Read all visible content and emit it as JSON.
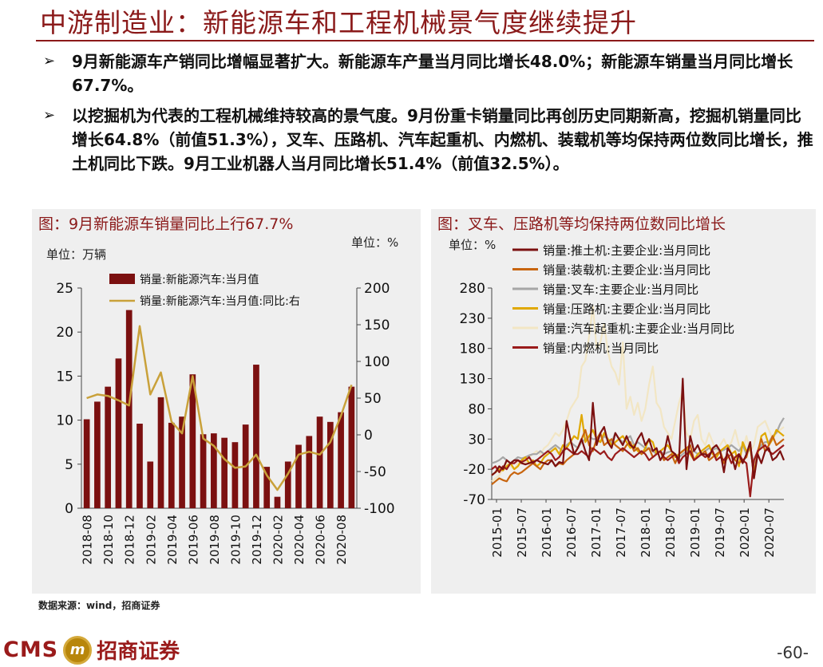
{
  "title": "中游制造业：新能源车和工程机械景气度继续提升",
  "bullets": [
    "9月新能源车产销同比增幅显著扩大。新能源车产量当月同比增长48.0%；新能源车销量当月同比增长67.7%。",
    "以挖掘机为代表的工程机械维持较高的景气度。9月份重卡销量同比再创历史同期新高，挖掘机销量同比增长64.8%（前值51.3%），叉车、压路机、汽车起重机、内燃机、装载机等均保持两位数同比增长，推土机同比下跌。9月工业机器人当月同比增长51.4%（前值32.5%）。"
  ],
  "bullet_marker": "➢",
  "source": "数据来源：wind，招商证券",
  "logo": {
    "cms": "CMS",
    "badge": "m",
    "cn": "招商证券"
  },
  "page_number": "-60-",
  "colors": {
    "brand": "#8b1a1a",
    "bar": "#7b1010",
    "line_gold": "#c9a13a"
  },
  "chart_data": [
    {
      "type": "bar",
      "title": "图：9月新能源车销量同比上行67.7%",
      "unit_left": "单位：万辆",
      "unit_right": "单位：%",
      "categories": [
        "2018-08",
        "2018-09",
        "2018-10",
        "2018-11",
        "2018-12",
        "2019-01",
        "2019-02",
        "2019-03",
        "2019-04",
        "2019-05",
        "2019-06",
        "2019-07",
        "2019-08",
        "2019-09",
        "2019-10",
        "2019-11",
        "2019-12",
        "2020-01",
        "2020-02",
        "2020-03",
        "2020-04",
        "2020-05",
        "2020-06",
        "2020-07",
        "2020-08",
        "2020-09"
      ],
      "xtick_labels": [
        "2018-08",
        "2018-10",
        "2018-12",
        "2019-02",
        "2019-04",
        "2019-06",
        "2019-08",
        "2019-10",
        "2019-12",
        "2020-02",
        "2020-04",
        "2020-06",
        "2020-08"
      ],
      "series": [
        {
          "name": "销量:新能源汽车:当月值",
          "type": "bar",
          "axis": "left",
          "values": [
            10.1,
            12.1,
            13.8,
            17.0,
            22.5,
            9.6,
            5.3,
            12.6,
            9.7,
            10.4,
            15.2,
            8.4,
            8.5,
            8.0,
            7.5,
            9.5,
            16.3,
            4.7,
            1.3,
            5.3,
            7.2,
            8.2,
            10.4,
            9.8,
            10.9,
            13.8
          ]
        },
        {
          "name": "销量:新能源汽车:当月值:同比:右",
          "type": "line",
          "axis": "right",
          "values": [
            50,
            55,
            53,
            47,
            40,
            148,
            55,
            85,
            18,
            2,
            80,
            -5,
            -15,
            -33,
            -45,
            -43,
            -27,
            -55,
            -75,
            -53,
            -27,
            -23,
            -27,
            -10,
            26,
            68
          ]
        }
      ],
      "ylim_left": [
        0,
        25
      ],
      "ylim_right": [
        -100,
        200
      ],
      "yticks_left": [
        0,
        5,
        10,
        15,
        20,
        25
      ],
      "yticks_right": [
        -100,
        -50,
        0,
        50,
        100,
        150,
        200
      ],
      "legend": "top"
    },
    {
      "type": "line",
      "title": "图：叉车、压路机等均保持两位数同比增长",
      "unit_left": "单位：%",
      "xtick_labels": [
        "2015-01",
        "2015-07",
        "2016-01",
        "2016-07",
        "2017-01",
        "2017-07",
        "2018-01",
        "2018-07",
        "2019-01",
        "2019-07",
        "2020-01",
        "2020-07"
      ],
      "ylim": [
        -70,
        280
      ],
      "yticks": [
        -70,
        -20,
        30,
        80,
        130,
        180,
        230,
        280
      ],
      "series": [
        {
          "name": "销量:推土机:主要企业:当月同比",
          "color": "#7b1010",
          "values": [
            -30,
            -25,
            -15,
            -20,
            -5,
            -10,
            -5,
            -5,
            -10,
            -12,
            -10,
            -8,
            -5,
            -8,
            -10,
            -12,
            -5,
            -15,
            -8,
            -10,
            60,
            30,
            5,
            15,
            30,
            10,
            -5,
            90,
            20,
            40,
            50,
            25,
            15,
            40,
            30,
            20,
            35,
            20,
            15,
            30,
            40,
            20,
            30,
            10,
            15,
            -5,
            5,
            35,
            10,
            5,
            -5,
            130,
            -20,
            35,
            10,
            20,
            5,
            5,
            0,
            15,
            20,
            10,
            -25,
            15,
            5,
            -20,
            5,
            -10,
            5,
            25,
            -35,
            5,
            -10,
            10,
            15,
            -5,
            0,
            10,
            -5
          ]
        },
        {
          "name": "销量:装载机:主要企业:当月同比",
          "color": "#c8650f",
          "values": [
            -45,
            -40,
            -35,
            -38,
            -40,
            -30,
            -25,
            -28,
            -25,
            -20,
            -15,
            -10,
            -15,
            -20,
            -10,
            -5,
            -5,
            -15,
            -10,
            -12,
            -5,
            0,
            5,
            15,
            30,
            45,
            20,
            10,
            30,
            40,
            20,
            25,
            30,
            20,
            15,
            10,
            20,
            25,
            10,
            15,
            5,
            10,
            15,
            0,
            5,
            10,
            -5,
            0,
            5,
            -10,
            5,
            10,
            15,
            20,
            -5,
            0,
            5,
            10,
            -5,
            0,
            5,
            10,
            -10,
            0,
            5,
            -5,
            -10,
            -5,
            0,
            25,
            -35,
            10,
            30,
            10,
            20,
            35,
            20,
            25,
            30
          ]
        },
        {
          "name": "销量:叉车:主要企业:当月同比",
          "color": "#a6a6a6",
          "values": [
            -10,
            -8,
            -5,
            0,
            -5,
            -10,
            -5,
            0,
            -2,
            0,
            3,
            5,
            5,
            10,
            5,
            10,
            15,
            20,
            15,
            10,
            20,
            25,
            20,
            15,
            25,
            30,
            35,
            30,
            30,
            25,
            35,
            30,
            25,
            40,
            30,
            25,
            30,
            35,
            20,
            25,
            20,
            15,
            15,
            10,
            5,
            10,
            5,
            8,
            10,
            5,
            0,
            5,
            10,
            8,
            10,
            5,
            5,
            10,
            15,
            12,
            15,
            10,
            12,
            15,
            20,
            15,
            10,
            20,
            5,
            15,
            -10,
            10,
            20,
            25,
            25,
            35,
            40,
            55,
            65
          ]
        },
        {
          "name": "销量:压路机:主要企业:当月同比",
          "color": "#e0a800",
          "values": [
            -30,
            -25,
            -20,
            -22,
            -15,
            -10,
            -20,
            -15,
            -5,
            0,
            -10,
            -5,
            -15,
            -10,
            0,
            5,
            10,
            15,
            5,
            20,
            15,
            25,
            35,
            30,
            70,
            25,
            35,
            45,
            30,
            25,
            40,
            30,
            20,
            25,
            30,
            35,
            25,
            15,
            20,
            10,
            5,
            15,
            30,
            25,
            5,
            10,
            15,
            20,
            10,
            0,
            5,
            10,
            15,
            5,
            -5,
            5,
            10,
            15,
            20,
            5,
            0,
            10,
            15,
            20,
            5,
            10,
            -15,
            25,
            10,
            15,
            -25,
            5,
            35,
            40,
            20,
            30,
            45,
            40,
            35
          ]
        },
        {
          "name": "销量:汽车起重机:主要企业:当月同比",
          "color": "#f2e6c4",
          "values": [
            -40,
            -35,
            -30,
            -20,
            -10,
            -15,
            -20,
            -10,
            -5,
            -10,
            0,
            5,
            10,
            5,
            15,
            20,
            30,
            40,
            35,
            45,
            60,
            80,
            90,
            100,
            150,
            160,
            200,
            250,
            180,
            190,
            220,
            175,
            150,
            140,
            120,
            190,
            80,
            100,
            70,
            90,
            60,
            80,
            120,
            150,
            90,
            80,
            50,
            40,
            30,
            60,
            90,
            110,
            40,
            30,
            60,
            70,
            30,
            20,
            40,
            25,
            10,
            20,
            30,
            15,
            25,
            45,
            20,
            10,
            35,
            10,
            20,
            50,
            55,
            60,
            45,
            30,
            40,
            45,
            50
          ]
        },
        {
          "name": "销量:内燃机:当月同比",
          "color": "#9a1b1b",
          "values": [
            -20,
            -15,
            -25,
            -15,
            -20,
            -10,
            -10,
            -5,
            -8,
            -5,
            0,
            -10,
            -5,
            0,
            5,
            10,
            5,
            -5,
            0,
            10,
            15,
            10,
            5,
            5,
            10,
            5,
            0,
            15,
            10,
            5,
            10,
            0,
            -5,
            5,
            10,
            15,
            10,
            5,
            0,
            5,
            10,
            5,
            -5,
            0,
            5,
            10,
            0,
            -5,
            0,
            5,
            -10,
            0,
            5,
            10,
            -5,
            0,
            5,
            0,
            5,
            10,
            -5,
            0,
            -5,
            5,
            -10,
            0,
            5,
            -5,
            -10,
            -65,
            -5,
            10,
            15,
            20,
            10,
            5,
            10,
            15,
            20
          ]
        }
      ],
      "legend": "top-right"
    }
  ]
}
